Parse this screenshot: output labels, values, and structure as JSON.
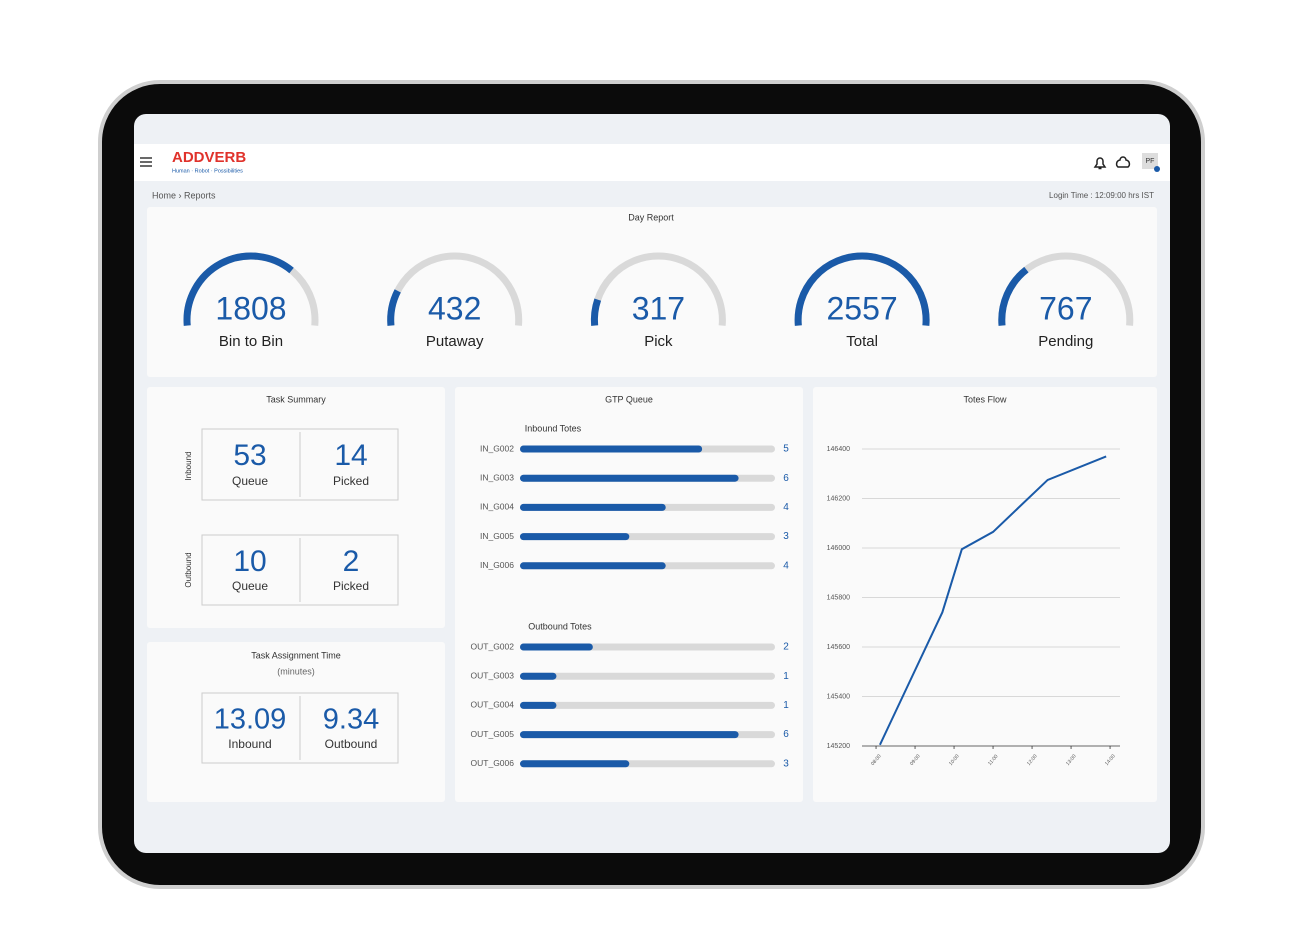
{
  "header": {
    "logo": "ADDVERB",
    "tagline": "Human · Robot · Possibilities",
    "user_initials": "PF"
  },
  "breadcrumb": "Home › Reports",
  "login_time": "Login Time : 12:09:00 hrs IST",
  "day_report": {
    "title": "Day Report",
    "color": "#1a5aa8",
    "gauges": [
      {
        "label": "Bin to Bin",
        "value": 1808
      },
      {
        "label": "Putaway",
        "value": 432
      },
      {
        "label": "Pick",
        "value": 317
      },
      {
        "label": "Total",
        "value": 2557
      },
      {
        "label": "Pending",
        "value": 767
      }
    ]
  },
  "task_summary": {
    "title": "Task Summary",
    "inbound": {
      "label": "Inbound",
      "queue": {
        "value": 53,
        "label": "Queue"
      },
      "picked": {
        "value": 14,
        "label": "Picked"
      }
    },
    "outbound": {
      "label": "Outbound",
      "queue": {
        "value": 10,
        "label": "Queue"
      },
      "picked": {
        "value": 2,
        "label": "Picked"
      }
    }
  },
  "task_assignment": {
    "title": "Task Assignment Time",
    "unit": "(minutes)",
    "inbound": {
      "value": 13.09,
      "label": "Inbound"
    },
    "outbound": {
      "value": 9.34,
      "label": "Outbound"
    }
  },
  "panels": {
    "gtp_queue": "GTP Queue"
  },
  "chart_data": [
    {
      "type": "bar",
      "orientation": "horizontal",
      "title": "Inbound Totes",
      "categories": [
        "IN_G002",
        "IN_G003",
        "IN_G004",
        "IN_G005",
        "IN_G006"
      ],
      "values": [
        5,
        6,
        4,
        3,
        4
      ],
      "color": "#1a5aa8",
      "xlim": [
        0,
        7
      ]
    },
    {
      "type": "bar",
      "orientation": "horizontal",
      "title": "Outbound Totes",
      "categories": [
        "OUT_G002",
        "OUT_G003",
        "OUT_G004",
        "OUT_G005",
        "OUT_G006"
      ],
      "values": [
        2,
        1,
        1,
        6,
        3
      ],
      "color": "#1a5aa8",
      "xlim": [
        0,
        7
      ]
    },
    {
      "type": "line",
      "title": "Totes Flow",
      "x": [
        8.1,
        9.7,
        10.2,
        11.0,
        12.4,
        13.9
      ],
      "values": [
        145205,
        145740,
        145995,
        146065,
        146275,
        146370
      ],
      "color": "#1a5aa8",
      "xlim": [
        7.64,
        14.46
      ],
      "xticks": [
        {
          "value": 8,
          "label": "08:00"
        },
        {
          "value": 9,
          "label": "09:00"
        },
        {
          "value": 10,
          "label": "10:00"
        },
        {
          "value": 11,
          "label": "11:00"
        },
        {
          "value": 12,
          "label": "12:00"
        },
        {
          "value": 13,
          "label": "13:00"
        },
        {
          "value": 14,
          "label": "14:00"
        }
      ],
      "ylim": [
        145200,
        146400
      ],
      "yticks": [
        145200,
        145400,
        145600,
        145800,
        146000,
        146200,
        146400
      ],
      "grid": true
    }
  ]
}
